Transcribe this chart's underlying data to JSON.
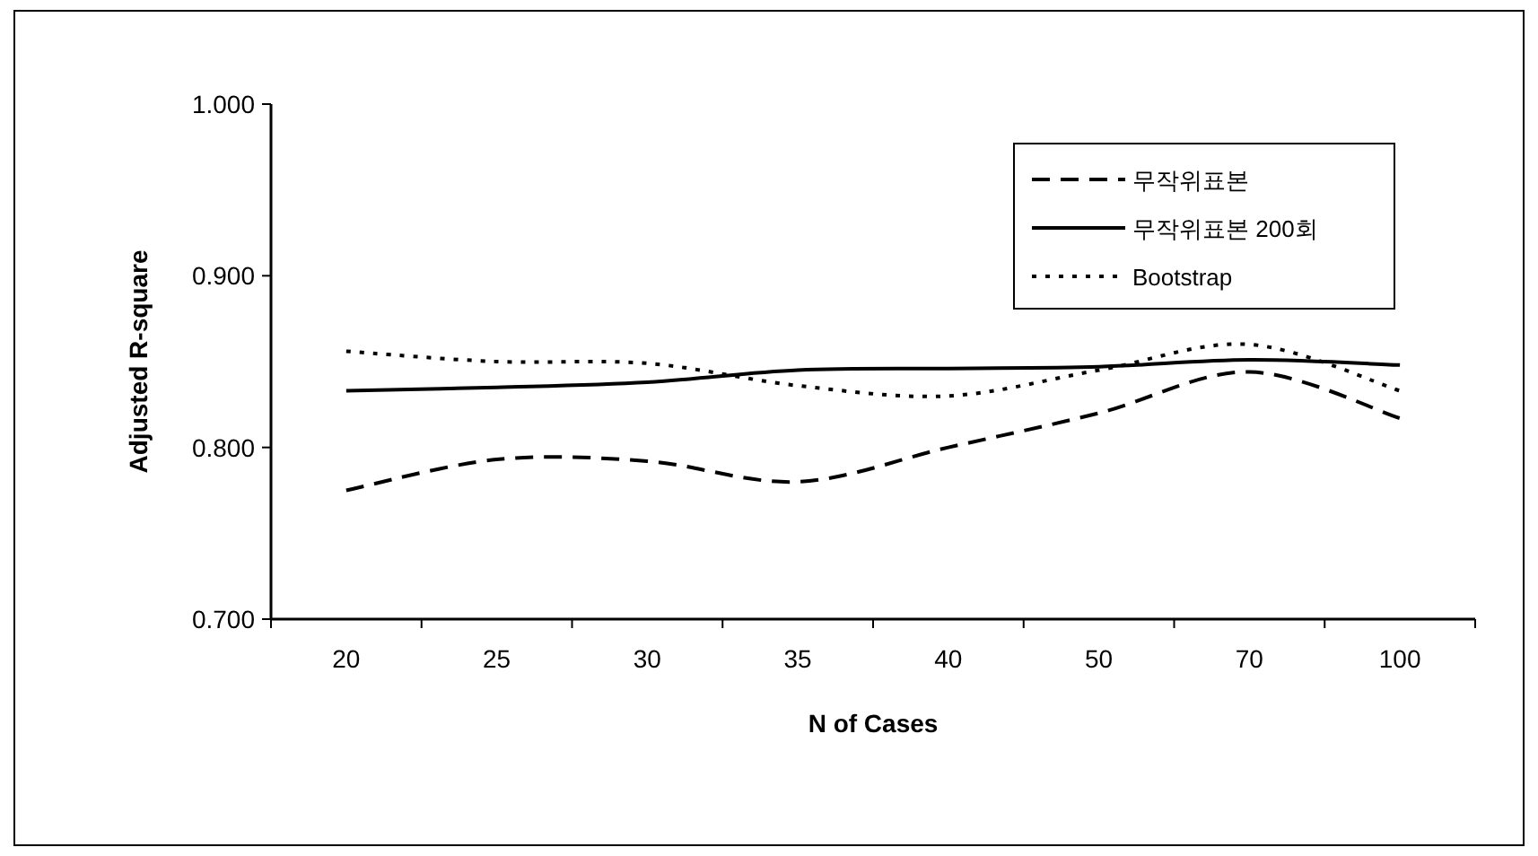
{
  "chart_data": {
    "type": "line",
    "xlabel": "N of Cases",
    "ylabel": "Adjusted R-square",
    "categories": [
      "20",
      "25",
      "30",
      "35",
      "40",
      "50",
      "70",
      "100"
    ],
    "ylim": [
      0.7,
      1.0
    ],
    "yticks": [
      {
        "value": 0.7,
        "label": "0.700"
      },
      {
        "value": 0.8,
        "label": "0.800"
      },
      {
        "value": 0.9,
        "label": "0.900"
      },
      {
        "value": 1.0,
        "label": "1.000"
      }
    ],
    "legend": "top right",
    "series": [
      {
        "name": "무작위표본",
        "color": "#000000",
        "line_style": "dashed",
        "values": [
          0.775,
          0.793,
          0.792,
          0.78,
          0.8,
          0.82,
          0.844,
          0.817
        ]
      },
      {
        "name": "무작위표본 200회",
        "color": "#000000",
        "line_style": "solid",
        "values": [
          0.833,
          0.835,
          0.838,
          0.845,
          0.846,
          0.847,
          0.851,
          0.848
        ]
      },
      {
        "name": "Bootstrap",
        "color": "#000000",
        "line_style": "dotted",
        "values": [
          0.856,
          0.85,
          0.849,
          0.836,
          0.83,
          0.845,
          0.86,
          0.833
        ]
      }
    ]
  }
}
